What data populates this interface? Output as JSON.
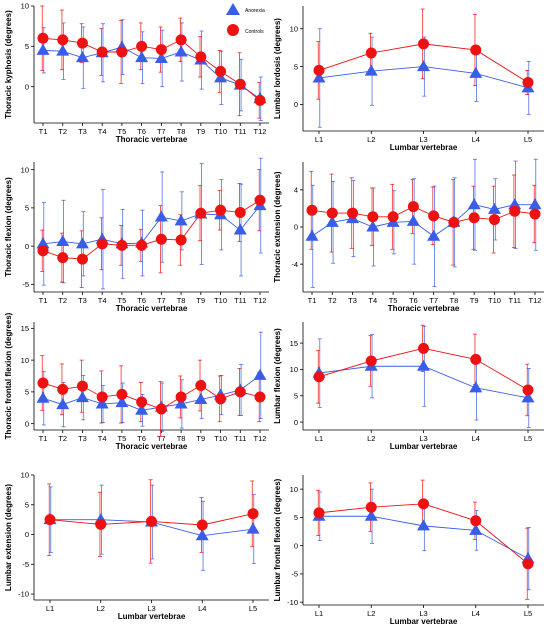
{
  "colors": {
    "anorexia": "#3a5de8",
    "controls": "#ee1111",
    "axis": "#000000"
  },
  "legend": {
    "placement": "top-right of first panel",
    "series": [
      "Anorexia",
      "Controls"
    ]
  },
  "chart_data": [
    {
      "type": "line",
      "title": "",
      "xlabel": "Thoracic vertebrae",
      "ylabel": "Thoracic kyphosis (degrees)",
      "categories": [
        "T1",
        "T2",
        "T3",
        "T4",
        "T5",
        "T6",
        "T7",
        "T8",
        "T9",
        "T10",
        "T11",
        "T12"
      ],
      "ylim": [
        -4.5,
        10
      ],
      "yticks": [
        0,
        5,
        10
      ],
      "grid": false,
      "series": [
        {
          "name": "Anorexia",
          "values": [
            4.5,
            4.4,
            3.6,
            4.2,
            4.9,
            3.6,
            3.5,
            4.3,
            3.3,
            1.1,
            0.2,
            -1.5
          ],
          "error": [
            2.8,
            3.5,
            3.8,
            3.6,
            3.4,
            3.2,
            3.5,
            3.6,
            3.6,
            3.3,
            3.2,
            2.7
          ]
        },
        {
          "name": "Controls",
          "values": [
            6.0,
            5.8,
            5.4,
            4.3,
            4.3,
            5.0,
            4.6,
            5.8,
            3.7,
            1.9,
            0.3,
            -1.7
          ],
          "error": [
            4.0,
            3.7,
            2.4,
            2.9,
            3.9,
            2.9,
            2.8,
            2.7,
            2.5,
            2.6,
            3.9,
            2.2
          ]
        }
      ]
    },
    {
      "type": "line",
      "title": "",
      "xlabel": "Lumbar vertebrae",
      "ylabel": "Lumbar lordosis (degrees)",
      "categories": [
        "L1",
        "L2",
        "L3",
        "L4",
        "L5"
      ],
      "ylim": [
        -3.5,
        13
      ],
      "yticks": [
        0,
        5,
        10
      ],
      "grid": false,
      "series": [
        {
          "name": "Anorexia",
          "values": [
            3.5,
            4.4,
            5.0,
            4.1,
            2.2
          ],
          "error": [
            6.5,
            4.5,
            3.9,
            3.7,
            3.5
          ]
        },
        {
          "name": "Controls",
          "values": [
            4.5,
            6.8,
            8.0,
            7.2,
            2.9
          ],
          "error": [
            3.8,
            2.6,
            4.6,
            4.7,
            1.6
          ]
        }
      ]
    },
    {
      "type": "line",
      "title": "",
      "xlabel": "Thoracic vertebrae",
      "ylabel": "Thoracic flexion (degrees)",
      "categories": [
        "T1",
        "T2",
        "T3",
        "T4",
        "T5",
        "T6",
        "T7",
        "T8",
        "T9",
        "T10",
        "T11",
        "T12"
      ],
      "ylim": [
        -6,
        11
      ],
      "yticks": [
        -5,
        0,
        5,
        10
      ],
      "grid": false,
      "series": [
        {
          "name": "Anorexia",
          "values": [
            0.3,
            0.6,
            0.3,
            0.9,
            0.3,
            0.4,
            3.8,
            3.3,
            4.2,
            4.1,
            2.1,
            5.3
          ],
          "error": [
            5.4,
            5.4,
            4.2,
            6.5,
            4.5,
            4.3,
            5.9,
            3.8,
            6.6,
            4.6,
            6.0,
            6.2
          ]
        },
        {
          "name": "Controls",
          "values": [
            -0.6,
            -1.5,
            -1.7,
            0.3,
            0.1,
            0.1,
            0.9,
            0.8,
            4.3,
            4.7,
            4.4,
            6.0
          ],
          "error": [
            2.7,
            3.2,
            3.7,
            3.4,
            2.6,
            2.1,
            4.4,
            3.3,
            3.6,
            2.6,
            3.8,
            4.0
          ]
        }
      ]
    },
    {
      "type": "line",
      "title": "",
      "xlabel": "Thoracic vertebrae",
      "ylabel": "Thoracic extension (degrees)",
      "categories": [
        "T1",
        "T2",
        "T3",
        "T4",
        "T5",
        "T6",
        "T7",
        "T8",
        "T9",
        "T10",
        "T11",
        "T12"
      ],
      "ylim": [
        -7,
        7
      ],
      "yticks": [
        -4,
        0,
        4
      ],
      "grid": false,
      "series": [
        {
          "name": "Anorexia",
          "values": [
            -1.0,
            0.5,
            0.9,
            0.0,
            0.5,
            0.6,
            -1.0,
            0.5,
            2.4,
            1.9,
            2.4,
            2.4
          ],
          "error": [
            5.5,
            4.4,
            4.1,
            4.2,
            3.4,
            4.6,
            5.4,
            4.8,
            4.9,
            3.3,
            4.7,
            4.9
          ]
        },
        {
          "name": "Controls",
          "values": [
            1.8,
            1.5,
            1.5,
            1.1,
            1.1,
            2.2,
            1.2,
            0.5,
            1.0,
            0.8,
            1.7,
            1.4
          ],
          "error": [
            4.2,
            4.2,
            3.8,
            3.1,
            3.5,
            2.9,
            3.1,
            4.6,
            3.4,
            3.6,
            3.9,
            3.1
          ]
        }
      ]
    },
    {
      "type": "line",
      "title": "",
      "xlabel": "Thoracic vertebrae",
      "ylabel": "Thoracic frontal flexion (degrees)",
      "categories": [
        "T1",
        "T2",
        "T3",
        "T4",
        "T5",
        "T6",
        "T7",
        "T8",
        "T9",
        "T10",
        "T11",
        "T12"
      ],
      "ylim": [
        -1,
        16
      ],
      "yticks": [
        0,
        5,
        10,
        15
      ],
      "grid": false,
      "series": [
        {
          "name": "Anorexia",
          "values": [
            4.0,
            3.0,
            4.1,
            3.1,
            3.3,
            2.1,
            2.6,
            3.1,
            3.8,
            4.5,
            5.3,
            7.6
          ],
          "error": [
            4.2,
            3.5,
            3.5,
            2.9,
            3.1,
            2.5,
            3.8,
            3.8,
            3.0,
            3.1,
            4.0,
            6.8
          ]
        },
        {
          "name": "Controls",
          "values": [
            6.4,
            5.4,
            5.9,
            4.2,
            4.6,
            3.4,
            2.3,
            4.2,
            6.0,
            3.9,
            5.0,
            4.2
          ],
          "error": [
            4.3,
            4.0,
            4.1,
            4.1,
            4.5,
            3.1,
            4.3,
            3.3,
            4.0,
            3.6,
            3.7,
            3.9
          ]
        }
      ]
    },
    {
      "type": "line",
      "title": "",
      "xlabel": "Lumbar vertebrae",
      "ylabel": "Lumbar flexion (degrees)",
      "categories": [
        "L1",
        "L2",
        "L3",
        "L4",
        "L5"
      ],
      "ylim": [
        -1.5,
        19
      ],
      "yticks": [
        0,
        5,
        10,
        15
      ],
      "grid": false,
      "series": [
        {
          "name": "Anorexia",
          "values": [
            9.3,
            10.6,
            10.6,
            6.5,
            4.6
          ],
          "error": [
            6.5,
            6.0,
            7.6,
            6.1,
            5.6
          ]
        },
        {
          "name": "Controls",
          "values": [
            8.6,
            11.6,
            14.0,
            11.9,
            6.1
          ],
          "error": [
            5.0,
            4.8,
            4.4,
            4.8,
            4.9
          ]
        }
      ]
    },
    {
      "type": "line",
      "title": "",
      "xlabel": "Lumbar vertebrae",
      "ylabel": "Lumbar extension (degrees)",
      "categories": [
        "L1",
        "L2",
        "L3",
        "L4",
        "L5"
      ],
      "ylim": [
        -11,
        10
      ],
      "yticks": [
        -10,
        -5,
        0,
        5,
        10
      ],
      "grid": false,
      "series": [
        {
          "name": "Anorexia",
          "values": [
            2.5,
            2.5,
            2.1,
            -0.2,
            0.9
          ],
          "error": [
            5.5,
            5.8,
            6.2,
            5.8,
            5.8
          ]
        },
        {
          "name": "Controls",
          "values": [
            2.5,
            1.7,
            2.2,
            1.6,
            3.5
          ],
          "error": [
            6.0,
            5.4,
            7.0,
            4.6,
            5.5
          ]
        }
      ]
    },
    {
      "type": "line",
      "title": "",
      "xlabel": "Lumbar vertebrae",
      "ylabel": "Lumbar frontal flexion (degrees)",
      "categories": [
        "L1",
        "L2",
        "L3",
        "L4",
        "L5"
      ],
      "ylim": [
        -10.5,
        12.5
      ],
      "yticks": [
        -10,
        -5,
        0,
        5,
        10
      ],
      "grid": false,
      "series": [
        {
          "name": "Anorexia",
          "values": [
            5.2,
            5.2,
            3.5,
            2.7,
            -2.3
          ],
          "error": [
            4.3,
            4.8,
            4.4,
            3.5,
            5.5
          ]
        },
        {
          "name": "Controls",
          "values": [
            5.8,
            6.8,
            7.4,
            4.4,
            -3.2
          ],
          "error": [
            4.0,
            4.3,
            4.2,
            3.3,
            6.3
          ]
        }
      ]
    }
  ]
}
